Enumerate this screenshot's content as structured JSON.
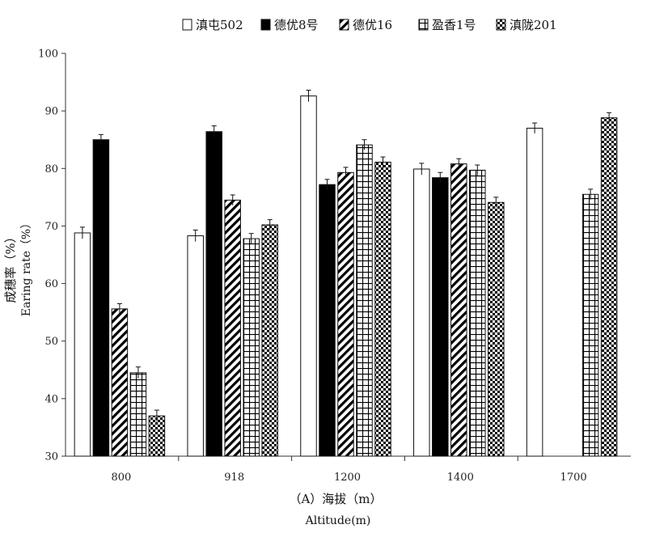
{
  "chart_data": {
    "type": "bar",
    "categories": [
      "800",
      "918",
      "1200",
      "1400",
      "1700"
    ],
    "series": [
      {
        "name": "滇屯502",
        "pattern": "white",
        "values": [
          68.8,
          68.3,
          92.6,
          79.9,
          87.0
        ],
        "errors": [
          1.0,
          1.0,
          1.0,
          1.0,
          0.9
        ]
      },
      {
        "name": "德优8号",
        "pattern": "black",
        "values": [
          85.0,
          86.4,
          77.2,
          78.4,
          null
        ],
        "errors": [
          0.9,
          1.0,
          0.9,
          0.9,
          null
        ]
      },
      {
        "name": "德优16",
        "pattern": "diagonal",
        "values": [
          55.6,
          74.5,
          79.3,
          80.8,
          null
        ],
        "errors": [
          0.9,
          0.9,
          0.9,
          0.9,
          null
        ]
      },
      {
        "name": "盈香1号",
        "pattern": "grid",
        "values": [
          44.5,
          67.8,
          84.1,
          79.7,
          75.5
        ],
        "errors": [
          1.0,
          0.9,
          0.9,
          0.9,
          0.9
        ]
      },
      {
        "name": "滇陇201",
        "pattern": "checker",
        "values": [
          37.0,
          70.2,
          81.1,
          74.1,
          88.8
        ],
        "errors": [
          1.0,
          0.9,
          0.9,
          0.9,
          0.9
        ]
      }
    ],
    "ylim": [
      30,
      100
    ],
    "yticks": [
      30,
      40,
      50,
      60,
      70,
      80,
      90,
      100
    ],
    "ylabel_cn": "成穗率（%）",
    "ylabel_en": "Earing rate（%）",
    "xlabel_cn": "（A）海拔（m）",
    "xlabel_en": "Altitude(m)",
    "legend_position": "top",
    "grid": false
  },
  "colors": {
    "bar_edge": "#111111",
    "fill_black": "#000000",
    "axis": "#333333"
  }
}
